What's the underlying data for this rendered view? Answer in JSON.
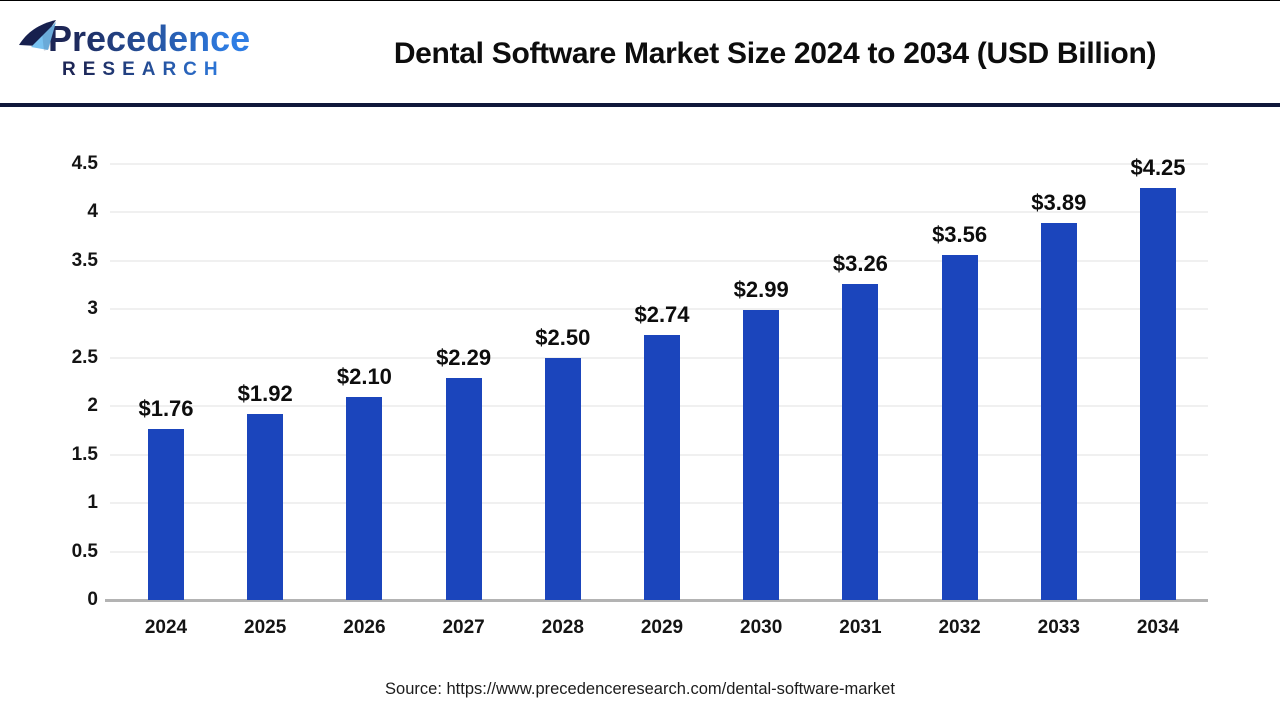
{
  "header": {
    "brand_line1": "Precedence",
    "brand_line2": "RESEARCH",
    "title": "Dental Software Market Size 2024 to 2034 (USD Billion)"
  },
  "chart_data": {
    "type": "bar",
    "title": "Dental Software Market Size 2024 to 2034 (USD Billion)",
    "categories": [
      "2024",
      "2025",
      "2026",
      "2027",
      "2028",
      "2029",
      "2030",
      "2031",
      "2032",
      "2033",
      "2034"
    ],
    "values": [
      1.76,
      1.92,
      2.1,
      2.29,
      2.5,
      2.74,
      2.99,
      3.26,
      3.56,
      3.89,
      4.25
    ],
    "value_labels": [
      "$1.76",
      "$1.92",
      "$2.10",
      "$2.29",
      "$2.50",
      "$2.74",
      "$2.99",
      "$3.26",
      "$3.56",
      "$3.89",
      "$4.25"
    ],
    "xlabel": "",
    "ylabel": "",
    "ylim": [
      0,
      4.5
    ],
    "yticks": [
      0,
      0.5,
      1,
      1.5,
      2,
      2.5,
      3,
      3.5,
      4,
      4.5
    ],
    "ytick_labels": [
      "0",
      "0.5",
      "1",
      "1.5",
      "2",
      "2.5",
      "3",
      "3.5",
      "4",
      "4.5"
    ],
    "grid": "horizontal-only",
    "legend": "none"
  },
  "footer": {
    "source": "Source: https://www.precedenceresearch.com/dental-software-market"
  },
  "colors": {
    "bar_color": "#1B45BC",
    "divider_navy": "#10173A",
    "gridline": "#F0F0F0",
    "axis_line": "#B3B3B3",
    "brand_navy": "#1D2656",
    "brand_blue": "#2E7DE4",
    "icon_navy": "#17204E",
    "icon_light_blue": "#79C2F0",
    "title_text": "#0D0D0D",
    "source_text": "#1C1C1C"
  }
}
